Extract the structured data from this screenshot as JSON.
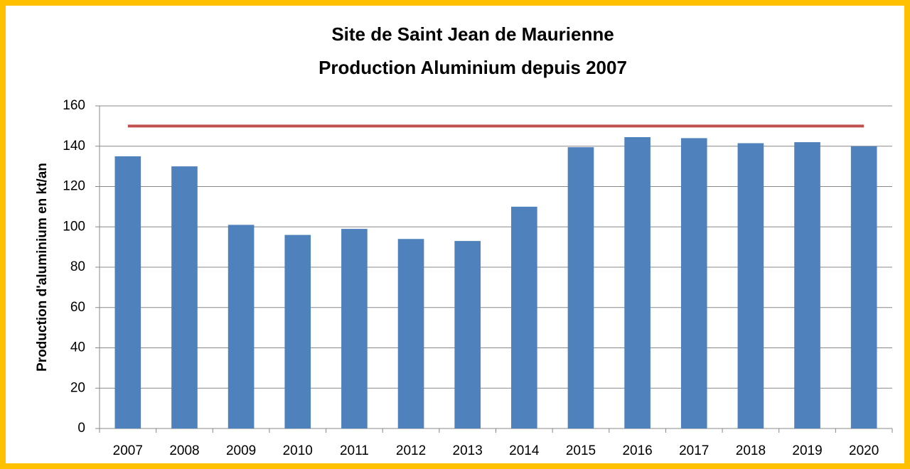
{
  "chart_data": {
    "type": "bar",
    "title": [
      "Site de Saint Jean de Maurienne",
      "Production Aluminium depuis 2007"
    ],
    "y_label": "Production d'aluminium en kt/an",
    "categories": [
      "2007",
      "2008",
      "2009",
      "2010",
      "2011",
      "2012",
      "2013",
      "2014",
      "2015",
      "2016",
      "2017",
      "2018",
      "2019",
      "2020"
    ],
    "series": [
      {
        "type": "bar",
        "color": "#4f81bd",
        "values": [
          135,
          130,
          101,
          96,
          99,
          94,
          93,
          110,
          139.5,
          144.5,
          144,
          141.5,
          142,
          140
        ]
      },
      {
        "type": "line",
        "color": "#c0504d",
        "values": [
          150,
          150,
          150,
          150,
          150,
          150,
          150,
          150,
          150,
          150,
          150,
          150,
          150,
          150
        ]
      }
    ],
    "ylim": [
      0,
      160
    ],
    "yticks": [
      0,
      20,
      40,
      60,
      80,
      100,
      120,
      140,
      160
    ],
    "grid": true
  }
}
